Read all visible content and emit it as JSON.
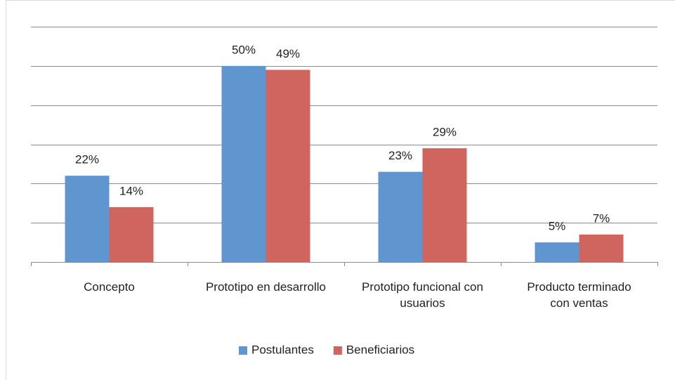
{
  "chart_data": {
    "type": "bar",
    "categories": [
      "Concepto",
      "Prototipo en desarrollo",
      "Prototipo funcional con\nusuarios",
      "Producto terminado\ncon ventas"
    ],
    "series": [
      {
        "name": "Postulantes",
        "color": "#6096cf",
        "values": [
          22,
          50,
          23,
          5
        ],
        "value_labels": [
          "22%",
          "50%",
          "23%",
          "5%"
        ]
      },
      {
        "name": "Beneficiarios",
        "color": "#d0645f",
        "values": [
          14,
          49,
          29,
          7
        ],
        "value_labels": [
          "14%",
          "49%",
          "29%",
          "7%"
        ]
      }
    ],
    "ylim": [
      0,
      60
    ],
    "yticks": [
      0,
      10,
      20,
      30,
      40,
      50,
      60
    ],
    "grid": true,
    "legend": "bottom"
  }
}
